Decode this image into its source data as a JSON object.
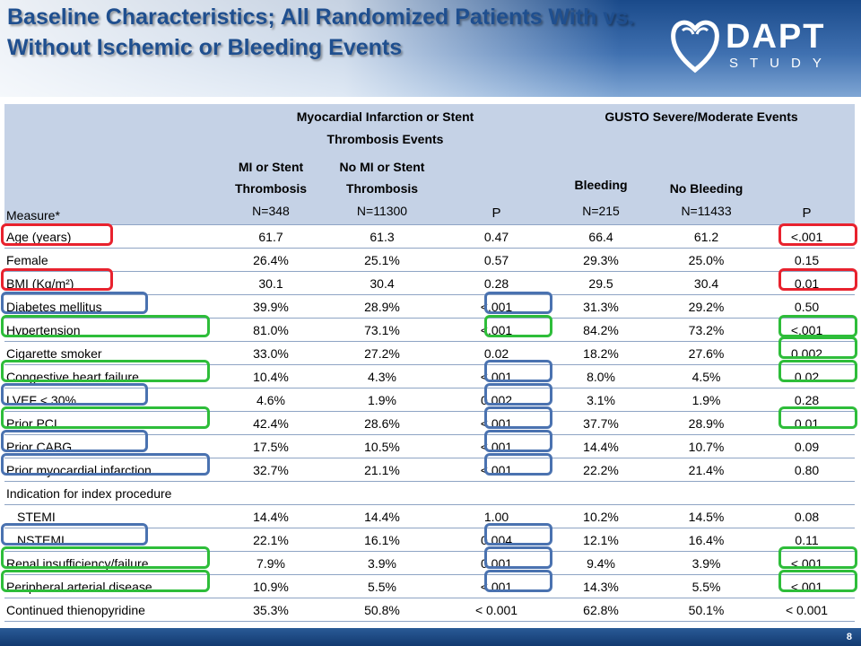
{
  "slide": {
    "title": "Baseline Characteristics; All Randomized Patients With vs. Without Ischemic or Bleeding Events",
    "page_number": "8"
  },
  "logo": {
    "word": "DAPT",
    "sub": "STUDY"
  },
  "table": {
    "group_mi": "Myocardial Infarction or Stent Thrombosis Events",
    "group_gusto": "GUSTO Severe/Moderate Events",
    "col_measure": "Measure*",
    "col_mi_line1": "MI or Stent",
    "col_mi_line2": "Thrombosis",
    "col_mi_n": "N=348",
    "col_nomi_line1": "No MI or Stent",
    "col_nomi_line2": "Thrombosis",
    "col_nomi_n": "N=11300",
    "col_p1": "P",
    "col_bleed": "Bleeding",
    "col_bleed_n": "N=215",
    "col_nobleed": "No Bleeding",
    "col_nobleed_n": "N=11433",
    "col_p2": "P",
    "rows": [
      {
        "measure": "Age (years)",
        "mi": "61.7",
        "nomi": "61.3",
        "p1": "0.47",
        "bleed": "66.4",
        "nobleed": "61.2",
        "p2": "<.001"
      },
      {
        "measure": "Female",
        "mi": "26.4%",
        "nomi": "25.1%",
        "p1": "0.57",
        "bleed": "29.3%",
        "nobleed": "25.0%",
        "p2": "0.15"
      },
      {
        "measure": "BMI (Kg/m²)",
        "mi": "30.1",
        "nomi": "30.4",
        "p1": "0.28",
        "bleed": "29.5",
        "nobleed": "30.4",
        "p2": "0.01"
      },
      {
        "measure": "Diabetes mellitus",
        "mi": "39.9%",
        "nomi": "28.9%",
        "p1": "<.001",
        "bleed": "31.3%",
        "nobleed": "29.2%",
        "p2": "0.50"
      },
      {
        "measure": "Hypertension",
        "mi": "81.0%",
        "nomi": "73.1%",
        "p1": "<.001",
        "bleed": "84.2%",
        "nobleed": "73.2%",
        "p2": "<.001"
      },
      {
        "measure": "Cigarette smoker",
        "mi": "33.0%",
        "nomi": "27.2%",
        "p1": "0.02",
        "bleed": "18.2%",
        "nobleed": "27.6%",
        "p2": "0.002"
      },
      {
        "measure": "Congestive heart failure",
        "mi": "10.4%",
        "nomi": "4.3%",
        "p1": "<.001",
        "bleed": "8.0%",
        "nobleed": "4.5%",
        "p2": "0.02"
      },
      {
        "measure": "LVEF < 30%",
        "mi": "4.6%",
        "nomi": "1.9%",
        "p1": "0.002",
        "bleed": "3.1%",
        "nobleed": "1.9%",
        "p2": "0.28"
      },
      {
        "measure": "Prior PCI",
        "mi": "42.4%",
        "nomi": "28.6%",
        "p1": "<.001",
        "bleed": "37.7%",
        "nobleed": "28.9%",
        "p2": "0.01"
      },
      {
        "measure": "Prior CABG",
        "mi": "17.5%",
        "nomi": "10.5%",
        "p1": "<.001",
        "bleed": "14.4%",
        "nobleed": "10.7%",
        "p2": "0.09"
      },
      {
        "measure": "Prior myocardial infarction",
        "mi": "32.7%",
        "nomi": "21.1%",
        "p1": "<.001",
        "bleed": "22.2%",
        "nobleed": "21.4%",
        "p2": "0.80"
      },
      {
        "measure": "Indication for index procedure",
        "mi": "",
        "nomi": "",
        "p1": "",
        "bleed": "",
        "nobleed": "",
        "p2": ""
      },
      {
        "measure": "STEMI",
        "mi": "14.4%",
        "nomi": "14.4%",
        "p1": "1.00",
        "bleed": "10.2%",
        "nobleed": "14.5%",
        "p2": "0.08"
      },
      {
        "measure": "NSTEMI",
        "mi": "22.1%",
        "nomi": "16.1%",
        "p1": "0.004",
        "bleed": "12.1%",
        "nobleed": "16.4%",
        "p2": "0.11"
      },
      {
        "measure": "Renal insufficiency/failure",
        "mi": "7.9%",
        "nomi": "3.9%",
        "p1": "0.001",
        "bleed": "9.4%",
        "nobleed": "3.9%",
        "p2": "<.001"
      },
      {
        "measure": "Peripheral arterial disease",
        "mi": "10.9%",
        "nomi": "5.5%",
        "p1": "<.001",
        "bleed": "14.3%",
        "nobleed": "5.5%",
        "p2": "<.001"
      },
      {
        "measure": "Continued thienopyridine",
        "mi": "35.3%",
        "nomi": "50.8%",
        "p1": "< 0.001",
        "bleed": "62.8%",
        "nobleed": "50.1%",
        "p2": "< 0.001"
      }
    ]
  },
  "highlight_colors": {
    "red": "#e8222e",
    "green": "#2ebd3a",
    "blue": "#4a72b0"
  }
}
